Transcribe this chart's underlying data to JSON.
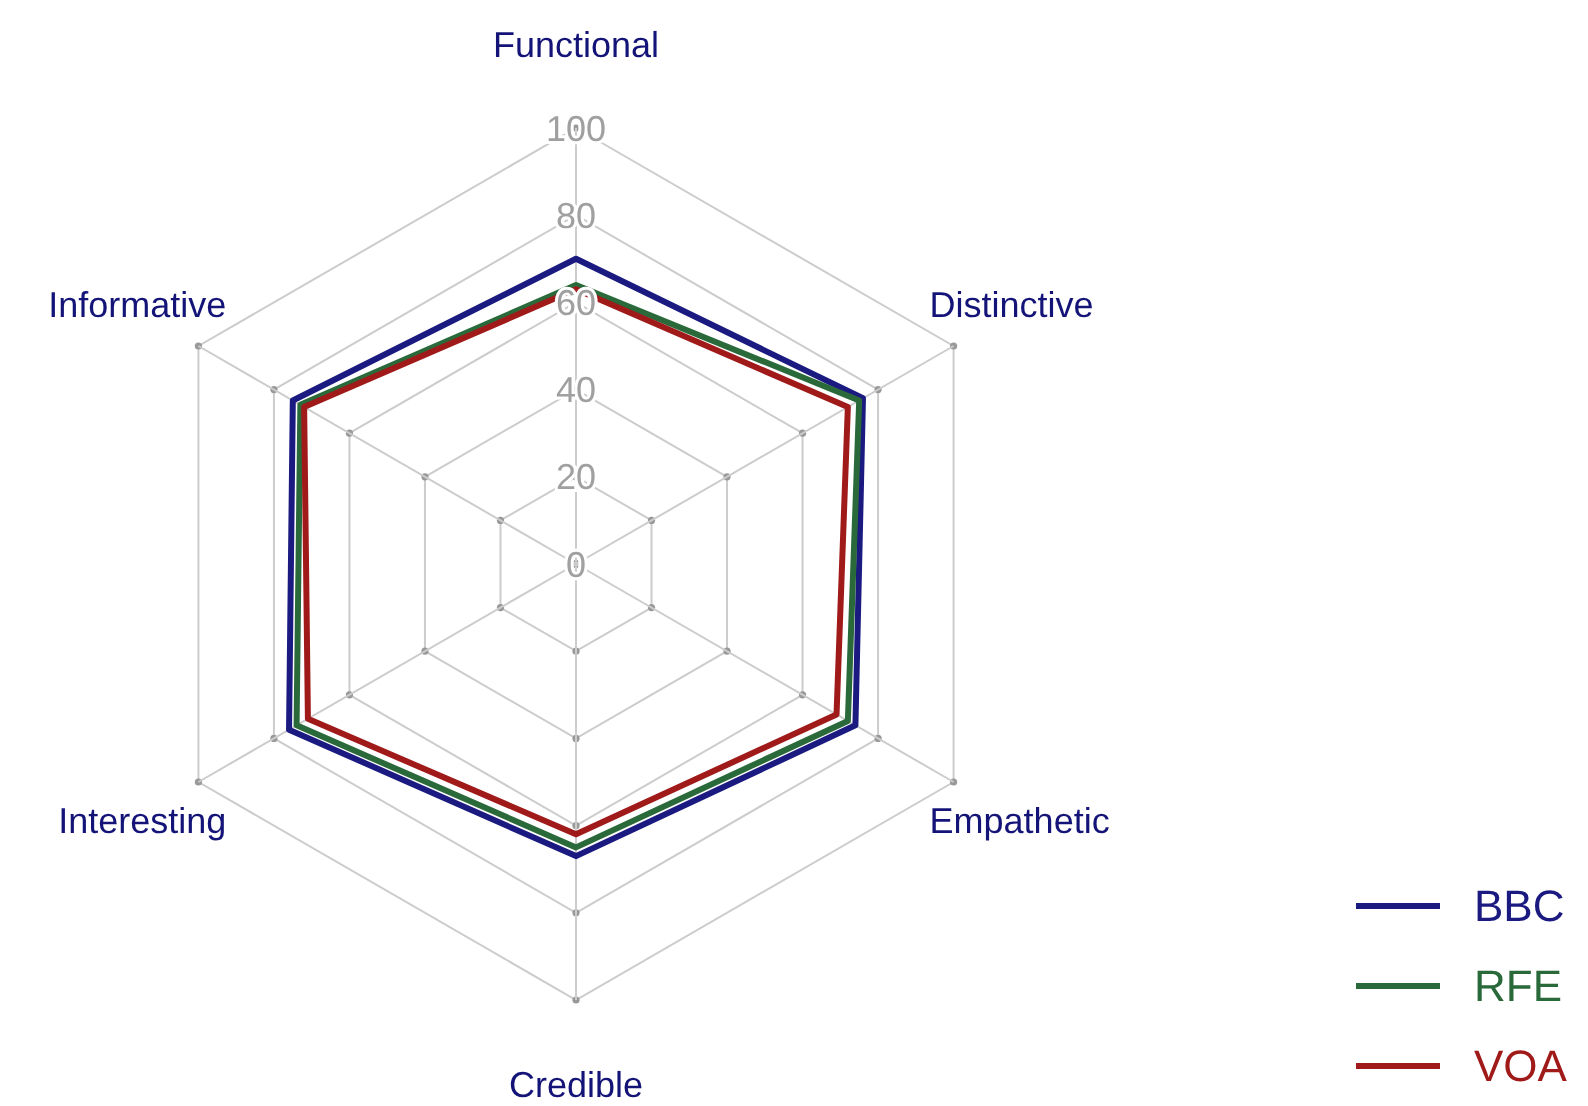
{
  "chart_data": {
    "type": "radar",
    "categories": [
      "Functional",
      "Distinctive",
      "Empathetic",
      "Credible",
      "Interesting",
      "Informative"
    ],
    "ylim": [
      0,
      100
    ],
    "yticks": [
      0,
      20,
      40,
      60,
      80,
      100
    ],
    "grid": true,
    "legend": "bottom right",
    "series": [
      {
        "name": "BBC",
        "color": "#1a1a80",
        "values": [
          70,
          76,
          74,
          67,
          76,
          75
        ]
      },
      {
        "name": "RFE",
        "color": "#2a6a3a",
        "values": [
          64,
          75,
          72,
          65,
          74,
          73
        ]
      },
      {
        "name": "VOA",
        "color": "#a01a1a",
        "values": [
          63,
          72,
          69,
          62,
          71,
          72
        ]
      }
    ]
  }
}
